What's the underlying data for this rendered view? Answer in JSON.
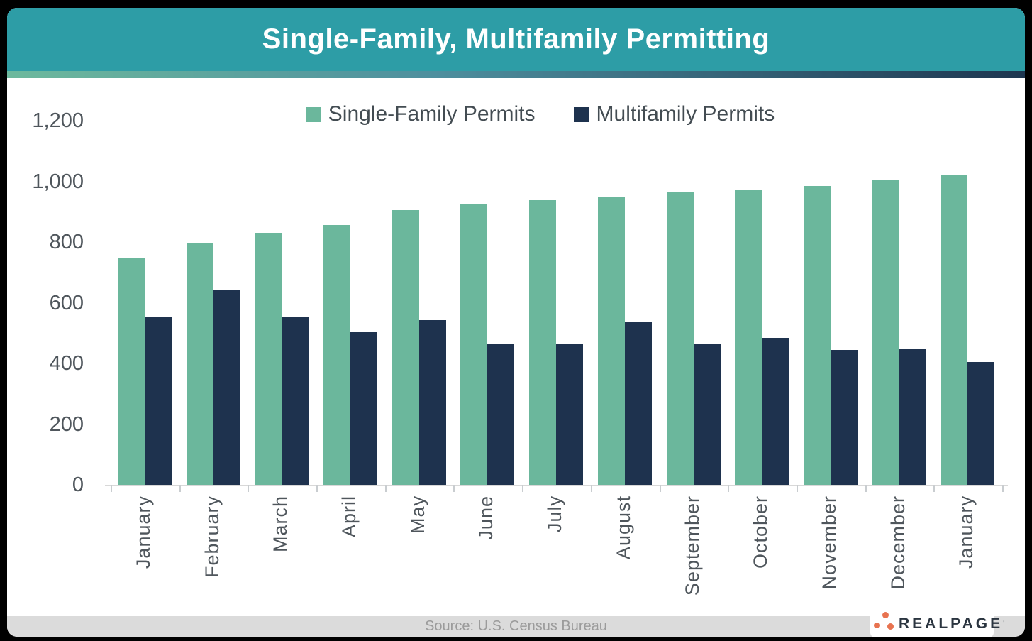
{
  "header": {
    "title": "Single-Family, Multifamily Permitting"
  },
  "theme": {
    "header_bg": "#2D9DA6",
    "gradient_left": "#6DB99D",
    "gradient_mid": "#4E8F9E",
    "gradient_right": "#1E3650",
    "single_family_color": "#6BB79C",
    "multifamily_color": "#1E324E",
    "axis_text_color": "#4F565C",
    "logo_dot_color": "#E87350",
    "logo_text_color": "#2B3540"
  },
  "legend": {
    "items": [
      {
        "label": "Single-Family Permits",
        "color": "#6BB79C"
      },
      {
        "label": "Multifamily Permits",
        "color": "#1E324E"
      }
    ]
  },
  "chart_data": {
    "type": "bar",
    "title": "Single-Family, Multifamily Permitting",
    "categories": [
      "January",
      "February",
      "March",
      "April",
      "May",
      "June",
      "July",
      "August",
      "September",
      "October",
      "November",
      "December",
      "January"
    ],
    "series": [
      {
        "name": "Single-Family Permits",
        "color": "#6BB79C",
        "values": [
          748,
          795,
          830,
          857,
          906,
          925,
          937,
          950,
          967,
          973,
          984,
          1003,
          1020
        ]
      },
      {
        "name": "Multifamily Permits",
        "color": "#1E324E",
        "values": [
          553,
          640,
          553,
          505,
          543,
          466,
          466,
          537,
          462,
          485,
          445,
          450,
          404
        ]
      }
    ],
    "xlabel": "",
    "ylabel": "",
    "ylim": [
      0,
      1200
    ],
    "yticks": [
      0,
      200,
      400,
      600,
      800,
      1000,
      1200
    ],
    "grid": false,
    "legend_position": "top-center"
  },
  "footer": {
    "source": "Source: U.S. Census Bureau"
  },
  "logo": {
    "text": "REALPAGE",
    "tm": "’"
  }
}
